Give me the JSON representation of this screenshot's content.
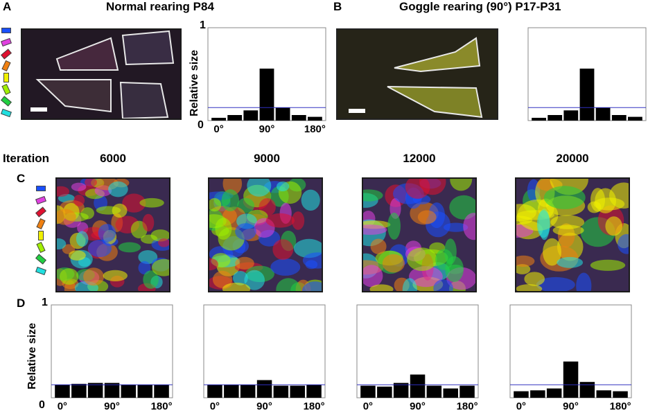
{
  "panel_labels": {
    "a": "A",
    "b": "B",
    "c": "C",
    "d": "D"
  },
  "titles": {
    "a": "Normal rearing  P84",
    "b": "Goggle rearing (90°) P17-P31"
  },
  "iteration_label": "Iteration",
  "iterations": [
    "6000",
    "9000",
    "12000",
    "20000"
  ],
  "orientation_colors": [
    "#1a4fff",
    "#e040e0",
    "#e01030",
    "#f08010",
    "#f0f000",
    "#a0f000",
    "#20d040",
    "#20e0e0"
  ],
  "axis_text": {
    "ylabel": "Relative size",
    "y_top": "1",
    "y_bottom": "0"
  },
  "chart_data": [
    {
      "id": "A-hist",
      "type": "bar",
      "categories": [
        "0°",
        "",
        "",
        "90°",
        "",
        "",
        "180°"
      ],
      "tick_labels": [
        "0°",
        "90°",
        "180°"
      ],
      "values": [
        0.03,
        0.06,
        0.11,
        0.56,
        0.14,
        0.06,
        0.04
      ],
      "reference_line": 0.14,
      "ylim": [
        0,
        1
      ],
      "ylabel": "Relative size"
    },
    {
      "id": "B-hist",
      "type": "bar",
      "categories": [
        "0°",
        "",
        "",
        "90°",
        "",
        "",
        "180°"
      ],
      "tick_labels": [
        "",
        "",
        ""
      ],
      "values": [
        0.03,
        0.06,
        0.11,
        0.56,
        0.14,
        0.06,
        0.04
      ],
      "reference_line": 0.14,
      "ylim": [
        0,
        1
      ],
      "ylabel": ""
    },
    {
      "id": "D-6000",
      "type": "bar",
      "categories": [
        "0°",
        "",
        "",
        "90°",
        "",
        "",
        "180°"
      ],
      "tick_labels": [
        "0°",
        "90°",
        "180°"
      ],
      "values": [
        0.14,
        0.15,
        0.16,
        0.16,
        0.14,
        0.14,
        0.14
      ],
      "reference_line": 0.14,
      "ylim": [
        0,
        1
      ],
      "ylabel": "Relative size"
    },
    {
      "id": "D-9000",
      "type": "bar",
      "categories": [
        "0°",
        "",
        "",
        "90°",
        "",
        "",
        "180°"
      ],
      "tick_labels": [
        "0°",
        "90°",
        "180°"
      ],
      "values": [
        0.14,
        0.14,
        0.14,
        0.19,
        0.13,
        0.13,
        0.14
      ],
      "reference_line": 0.14,
      "ylim": [
        0,
        1
      ],
      "ylabel": ""
    },
    {
      "id": "D-12000",
      "type": "bar",
      "categories": [
        "0°",
        "",
        "",
        "90°",
        "",
        "",
        "180°"
      ],
      "tick_labels": [
        "0°",
        "90°",
        "180°"
      ],
      "values": [
        0.13,
        0.12,
        0.16,
        0.25,
        0.13,
        0.1,
        0.13
      ],
      "reference_line": 0.14,
      "ylim": [
        0,
        1
      ],
      "ylabel": ""
    },
    {
      "id": "D-20000",
      "type": "bar",
      "categories": [
        "0°",
        "",
        "",
        "90°",
        "",
        "",
        "180°"
      ],
      "tick_labels": [
        "0°",
        "90°",
        "180°"
      ],
      "values": [
        0.07,
        0.08,
        0.1,
        0.39,
        0.17,
        0.08,
        0.07
      ],
      "reference_line": 0.14,
      "ylim": [
        0,
        1
      ],
      "ylabel": ""
    }
  ]
}
